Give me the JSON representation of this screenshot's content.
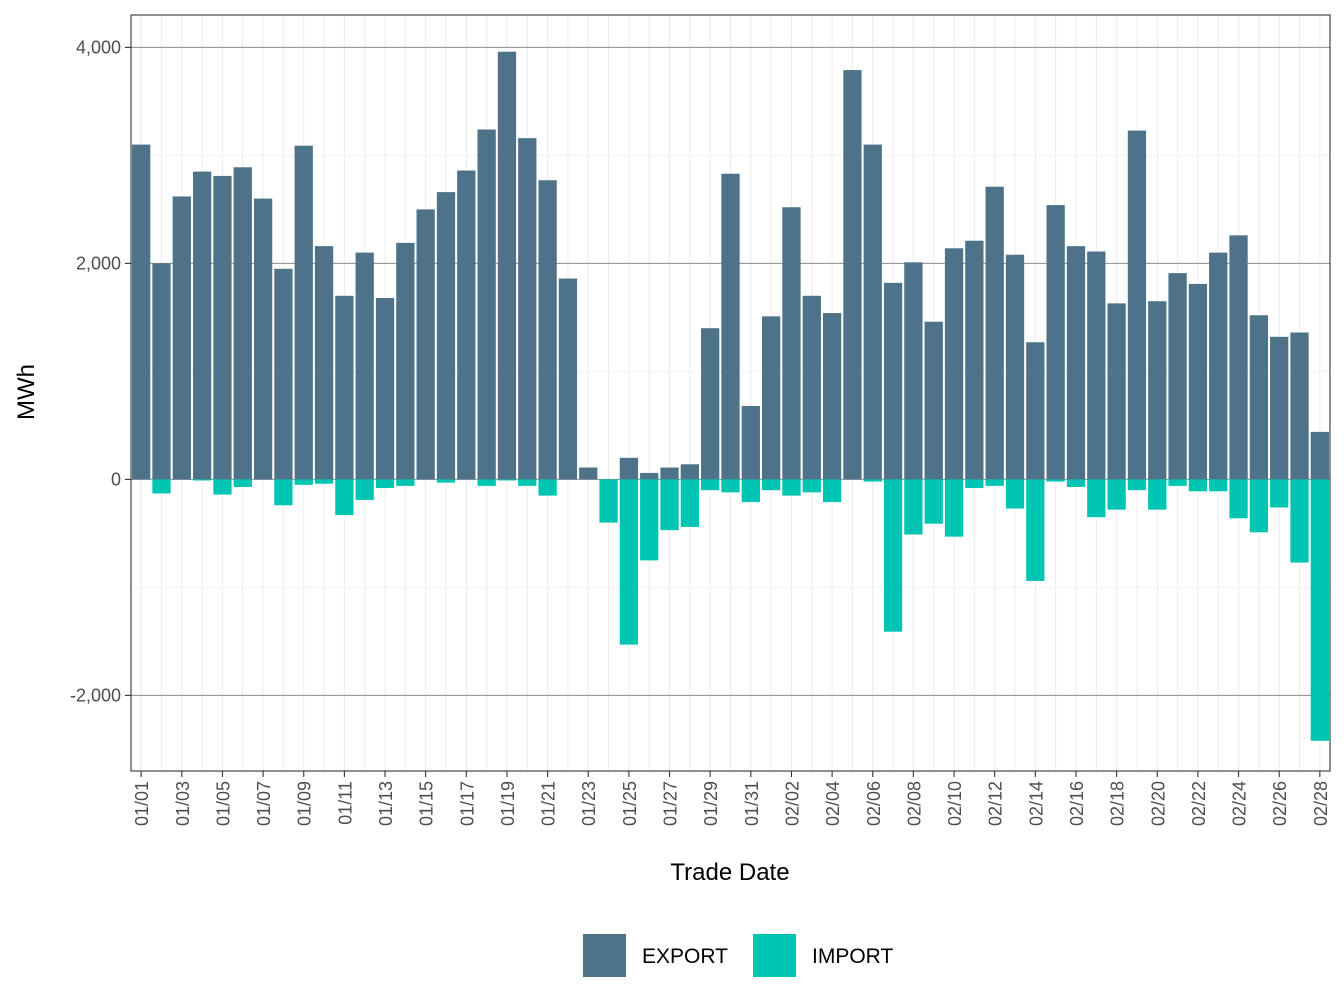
{
  "chart_data": {
    "type": "bar",
    "stacked": true,
    "title": "",
    "xlabel": "Trade Date",
    "ylabel": "MWh",
    "ylim": [
      -2700,
      4300
    ],
    "yticks": [
      -2000,
      0,
      2000,
      4000
    ],
    "ytick_labels": [
      "-2,000",
      "0",
      "2,000",
      "4,000"
    ],
    "grid": true,
    "legend_position": "bottom",
    "categories": [
      "01/01",
      "01/02",
      "01/03",
      "01/04",
      "01/05",
      "01/06",
      "01/07",
      "01/08",
      "01/09",
      "01/10",
      "01/11",
      "01/12",
      "01/13",
      "01/14",
      "01/15",
      "01/16",
      "01/17",
      "01/18",
      "01/19",
      "01/20",
      "01/21",
      "01/22",
      "01/23",
      "01/24",
      "01/25",
      "01/26",
      "01/27",
      "01/28",
      "01/29",
      "01/30",
      "01/31",
      "02/01",
      "02/02",
      "02/03",
      "02/04",
      "02/05",
      "02/06",
      "02/07",
      "02/08",
      "02/09",
      "02/10",
      "02/11",
      "02/12",
      "02/13",
      "02/14",
      "02/15",
      "02/16",
      "02/17",
      "02/18",
      "02/19",
      "02/20",
      "02/21",
      "02/22",
      "02/23",
      "02/24",
      "02/25",
      "02/26",
      "02/27",
      "02/28"
    ],
    "xtick_labels": [
      "01/01",
      "01/03",
      "01/05",
      "01/07",
      "01/09",
      "01/11",
      "01/13",
      "01/15",
      "01/17",
      "01/19",
      "01/21",
      "01/23",
      "01/25",
      "01/27",
      "01/29",
      "01/31",
      "02/02",
      "02/04",
      "02/06",
      "02/08",
      "02/10",
      "02/12",
      "02/14",
      "02/16",
      "02/18",
      "02/20",
      "02/22",
      "02/24",
      "02/26",
      "02/28"
    ],
    "series": [
      {
        "name": "EXPORT",
        "color": "#4e7388",
        "values": [
          3100,
          2000,
          2620,
          2850,
          2810,
          2890,
          2600,
          1950,
          3090,
          2160,
          1700,
          2100,
          1680,
          2190,
          2500,
          2660,
          2860,
          3240,
          3960,
          3160,
          2770,
          1860,
          110,
          0,
          200,
          60,
          110,
          140,
          1400,
          2830,
          680,
          1510,
          2520,
          1700,
          1540,
          3790,
          3100,
          1820,
          2010,
          1460,
          2140,
          2210,
          2710,
          2080,
          1270,
          2540,
          2160,
          2110,
          1630,
          3230,
          1650,
          1910,
          1810,
          2100,
          2260,
          1520,
          1320,
          1360,
          440
        ]
      },
      {
        "name": "IMPORT",
        "color": "#00c5b2",
        "values": [
          0,
          -130,
          0,
          -10,
          -140,
          -70,
          0,
          -240,
          -50,
          -40,
          -330,
          -190,
          -80,
          -60,
          0,
          -30,
          0,
          -60,
          -10,
          -60,
          -150,
          0,
          0,
          -400,
          -1530,
          -750,
          -470,
          -440,
          -100,
          -120,
          -210,
          -100,
          -150,
          -120,
          -210,
          0,
          -20,
          -1410,
          -510,
          -410,
          -530,
          -80,
          -60,
          -270,
          -940,
          -20,
          -70,
          -350,
          -280,
          -100,
          -280,
          -60,
          -110,
          -110,
          -360,
          -490,
          -260,
          -770,
          -2420
        ]
      }
    ]
  }
}
